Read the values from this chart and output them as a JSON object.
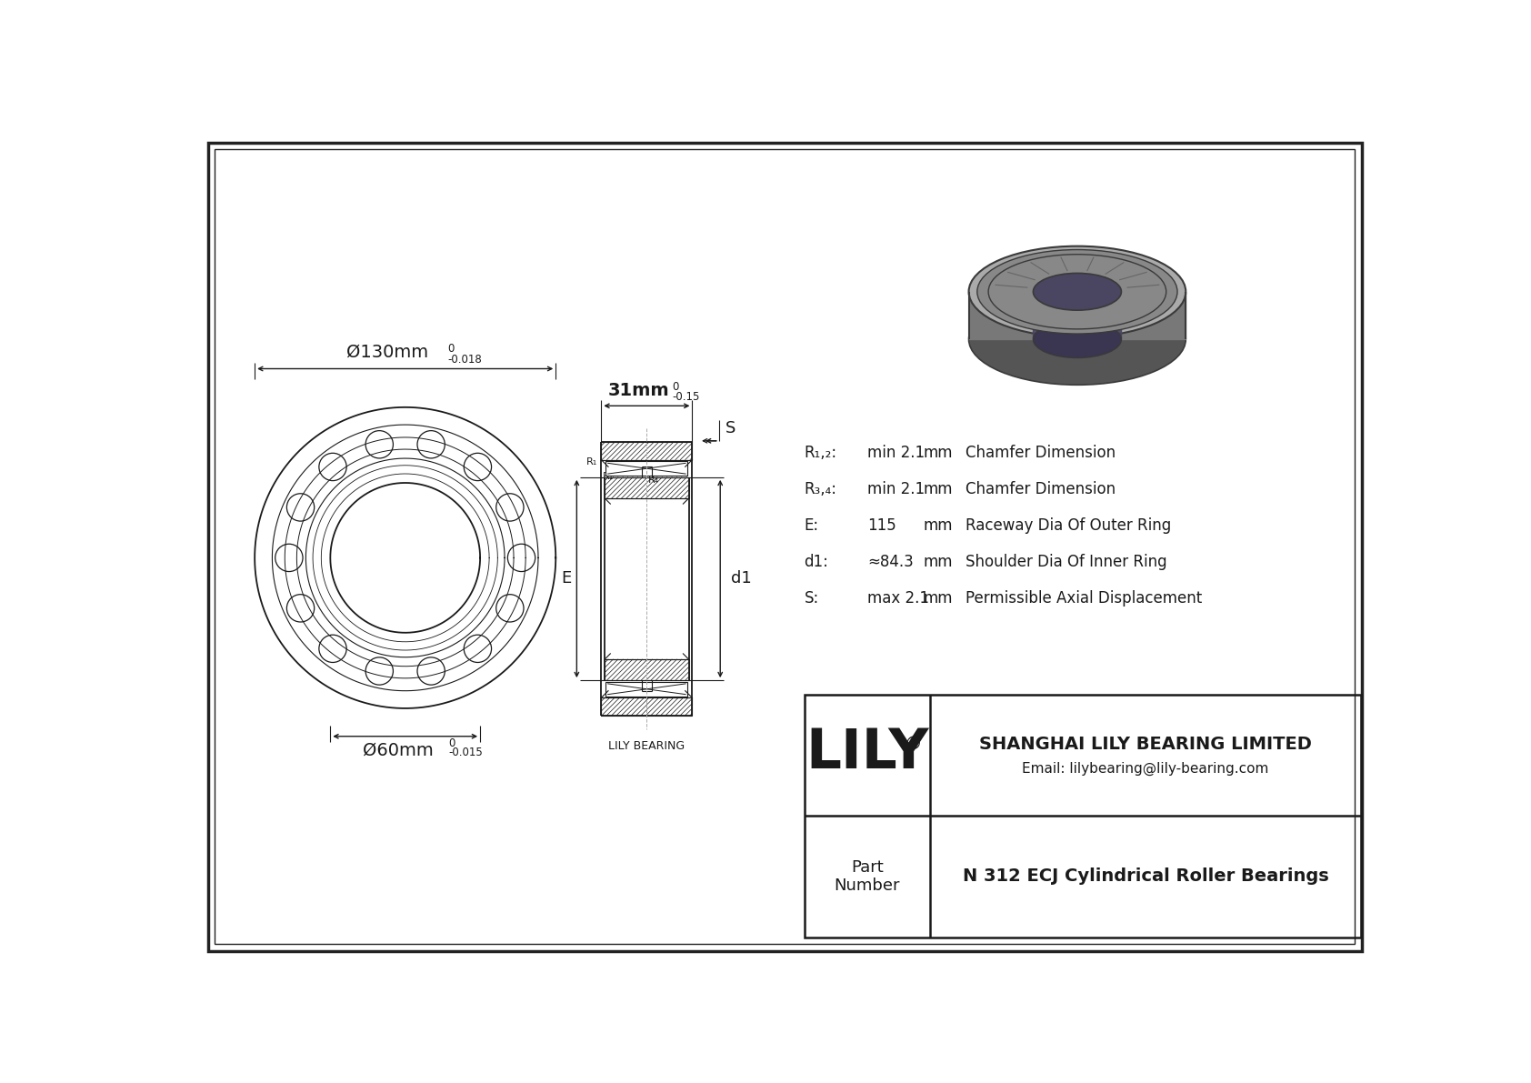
{
  "bg_color": "#ffffff",
  "line_color": "#1a1a1a",
  "title": "N 312 ECJ Cylindrical Roller Bearings",
  "company": "SHANGHAI LILY BEARING LIMITED",
  "email": "Email: lilybearing@lily-bearing.com",
  "part_label": "Part\nNumber",
  "lily_text": "LILY",
  "lily_bearing_label": "LILY BEARING",
  "outer_dia_label": "Ø130mm",
  "outer_dia_tol_top": "0",
  "outer_dia_tol_bot": "-0.018",
  "inner_dia_label": "Ø60mm",
  "inner_dia_tol_top": "0",
  "inner_dia_tol_bot": "-0.015",
  "width_label": "31mm",
  "width_tol_top": "0",
  "width_tol_bot": "-0.15",
  "dim_S": "S",
  "dim_E": "E",
  "dim_d1": "d1",
  "specs": [
    [
      "R₁,₂:",
      "min 2.1",
      "mm",
      "Chamfer Dimension"
    ],
    [
      "R₃,₄:",
      "min 2.1",
      "mm",
      "Chamfer Dimension"
    ],
    [
      "E:",
      "115",
      "mm",
      "Raceway Dia Of Outer Ring"
    ],
    [
      "d1:",
      "≈84.3",
      "mm",
      "Shoulder Dia Of Inner Ring"
    ],
    [
      "S:",
      "max 2.1",
      "mm",
      "Permissible Axial Displacement"
    ]
  ]
}
